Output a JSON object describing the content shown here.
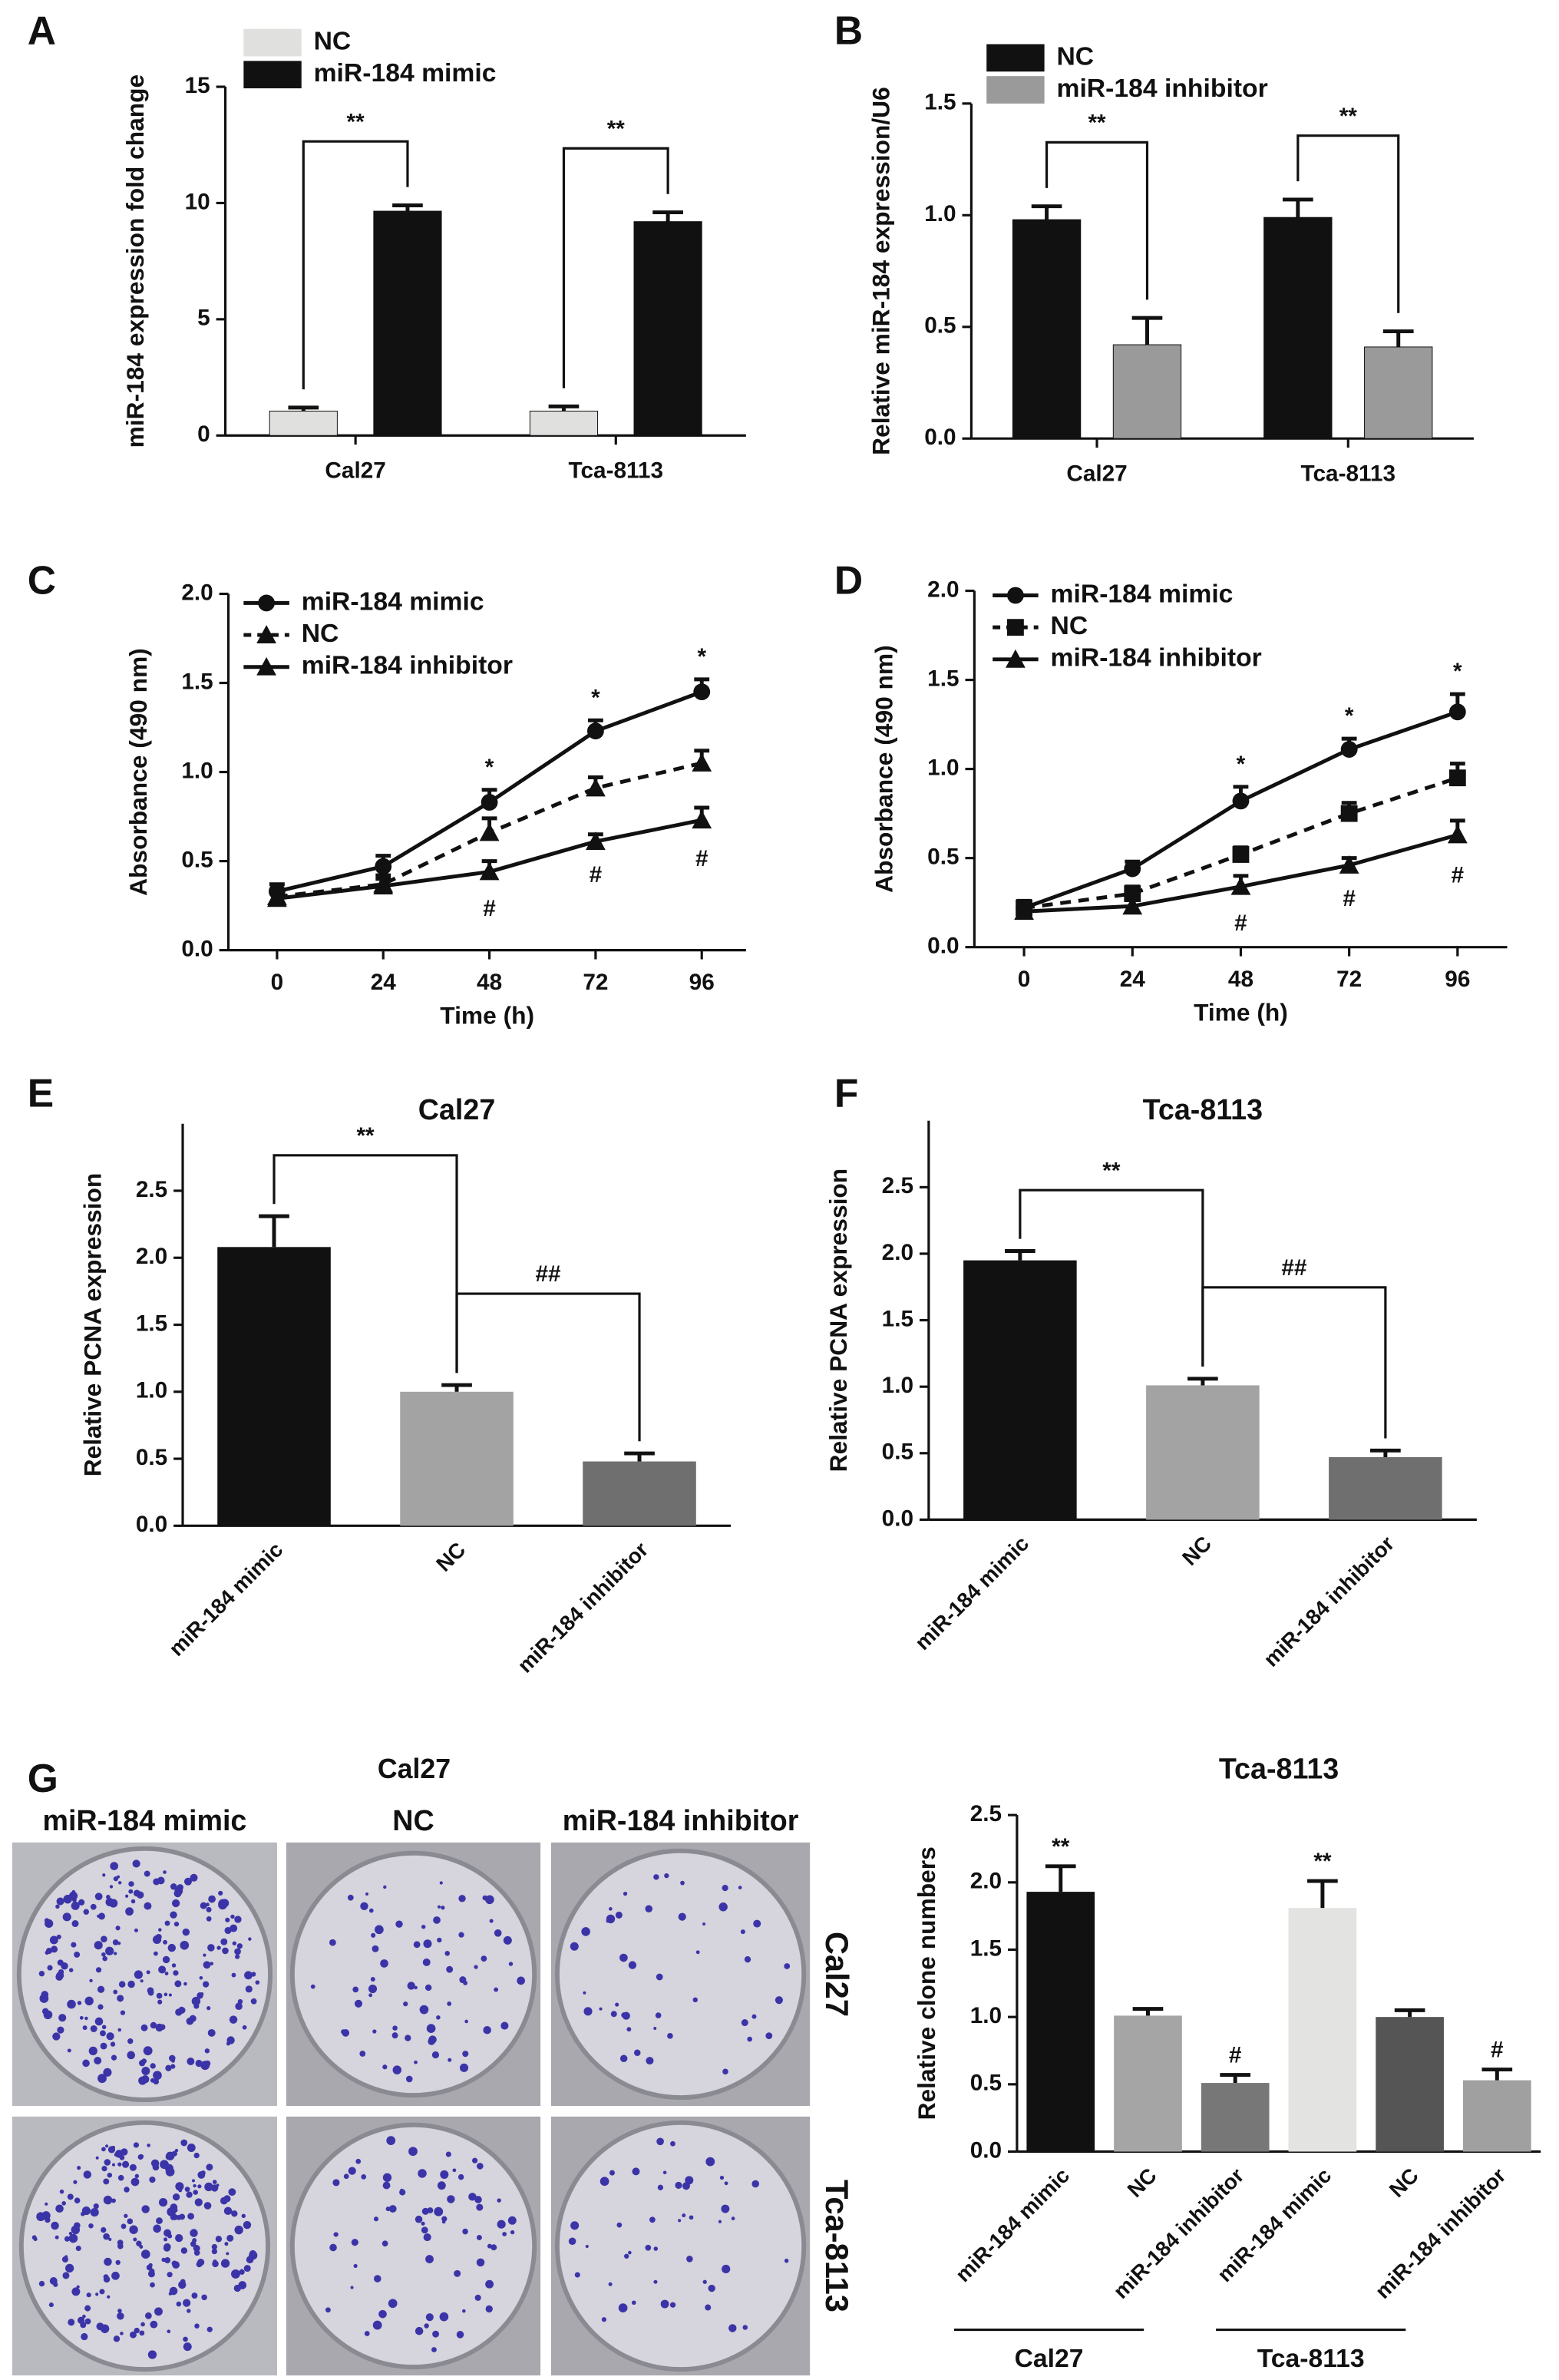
{
  "chart_data": [
    {
      "type": "bar",
      "panel": "A",
      "ylabel": "miR-184 expression fold change",
      "categories": [
        "Cal27",
        "Tca-8113"
      ],
      "series": [
        {
          "name": "NC",
          "color": "#e0e0de",
          "values": [
            1.05,
            1.05
          ],
          "errors": [
            0.15,
            0.2
          ]
        },
        {
          "name": "miR-184 mimic",
          "color": "#111111",
          "values": [
            9.65,
            9.2
          ],
          "errors": [
            0.25,
            0.4
          ]
        }
      ],
      "significance": [
        "**",
        "**"
      ],
      "ylim": [
        0,
        15
      ],
      "yticks": [
        0,
        5,
        10,
        15
      ]
    },
    {
      "type": "bar",
      "panel": "B",
      "ylabel": "Relative miR-184 expression/U6",
      "categories": [
        "Cal27",
        "Tca-8113"
      ],
      "series": [
        {
          "name": "NC",
          "color": "#111111",
          "values": [
            0.98,
            0.99
          ],
          "errors": [
            0.06,
            0.08
          ]
        },
        {
          "name": "miR-184 inhibitor",
          "color": "#9a9a9a",
          "values": [
            0.42,
            0.41
          ],
          "errors": [
            0.12,
            0.07
          ]
        }
      ],
      "significance": [
        "**",
        "**"
      ],
      "ylim": [
        0,
        1.5
      ],
      "yticks": [
        {
          "value": 0,
          "label": "0.0"
        },
        0.5,
        {
          "value": 1,
          "label": "1.0"
        },
        1.5
      ]
    },
    {
      "type": "line",
      "panel": "C",
      "xlabel": "Time (h)",
      "ylabel": "Absorbance (490 nm)",
      "x": [
        0,
        24,
        48,
        72,
        96
      ],
      "series": [
        {
          "name": "miR-184 mimic",
          "color": "#111111",
          "marker": "circle",
          "dash": false,
          "values": [
            0.33,
            0.47,
            0.83,
            1.23,
            1.45
          ],
          "errors": [
            0.04,
            0.06,
            0.07,
            0.06,
            0.07
          ],
          "annotations": [
            null,
            null,
            "*",
            "*",
            "*"
          ]
        },
        {
          "name": "NC",
          "color": "#111111",
          "marker": "triangle",
          "dash": true,
          "values": [
            0.3,
            0.37,
            0.66,
            0.91,
            1.05
          ],
          "errors": [
            0.04,
            0.05,
            0.08,
            0.06,
            0.07
          ]
        },
        {
          "name": "miR-184 inhibitor",
          "color": "#111111",
          "marker": "triangle",
          "dash": false,
          "values": [
            0.29,
            0.36,
            0.44,
            0.61,
            0.73
          ],
          "errors": [
            0.03,
            0.04,
            0.06,
            0.04,
            0.07
          ],
          "annotations": [
            null,
            null,
            "#",
            "#",
            "#"
          ]
        }
      ],
      "xlim": [
        -11,
        106
      ],
      "xticks": [
        0,
        24,
        48,
        72,
        96
      ],
      "ylim": [
        0,
        2
      ],
      "yticks": [
        {
          "value": 0,
          "label": "0.0"
        },
        0.5,
        {
          "value": 1,
          "label": "1.0"
        },
        1.5,
        {
          "value": 2,
          "label": "2.0"
        }
      ]
    },
    {
      "type": "line",
      "panel": "D",
      "xlabel": "Time (h)",
      "ylabel": "Absorbance (490 nm)",
      "x": [
        0,
        24,
        48,
        72,
        96
      ],
      "series": [
        {
          "name": "miR-184 mimic",
          "color": "#111111",
          "marker": "circle",
          "dash": false,
          "values": [
            0.22,
            0.44,
            0.82,
            1.11,
            1.32
          ],
          "errors": [
            0.04,
            0.04,
            0.08,
            0.06,
            0.1
          ],
          "annotations": [
            null,
            null,
            "*",
            "*",
            "*"
          ]
        },
        {
          "name": "NC",
          "color": "#111111",
          "marker": "square",
          "dash": true,
          "values": [
            0.22,
            0.3,
            0.52,
            0.75,
            0.95
          ],
          "errors": [
            0.03,
            0.04,
            0.04,
            0.06,
            0.08
          ]
        },
        {
          "name": "miR-184 inhibitor",
          "color": "#111111",
          "marker": "triangle",
          "dash": false,
          "values": [
            0.2,
            0.23,
            0.34,
            0.46,
            0.63
          ],
          "errors": [
            0.03,
            0.09,
            0.06,
            0.04,
            0.08
          ],
          "annotations": [
            null,
            null,
            "#",
            "#",
            "#"
          ]
        }
      ],
      "xlim": [
        -11,
        107
      ],
      "xticks": [
        0,
        24,
        48,
        72,
        96
      ],
      "ylim": [
        0,
        2
      ],
      "yticks": [
        {
          "value": 0,
          "label": "0.0"
        },
        0.5,
        {
          "value": 1,
          "label": "1.0"
        },
        1.5,
        {
          "value": 2,
          "label": "2.0"
        }
      ]
    },
    {
      "type": "bar",
      "panel": "E",
      "title": "Cal27",
      "ylabel": "Relative PCNA expression",
      "categories": [
        "miR-184 mimic",
        "NC",
        "miR-184 inhibitor"
      ],
      "values": [
        2.08,
        1.0,
        0.48
      ],
      "errors": [
        0.23,
        0.05,
        0.06
      ],
      "colors": [
        "#111111",
        "#a3a3a3",
        "#6f6f6f"
      ],
      "significance": [
        "**",
        "##"
      ],
      "ylim": [
        0,
        3
      ],
      "yticks": [
        {
          "value": 0,
          "label": "0.0"
        },
        0.5,
        {
          "value": 1,
          "label": "1.0"
        },
        1.5,
        {
          "value": 2,
          "label": "2.0"
        },
        2.5
      ]
    },
    {
      "type": "bar",
      "panel": "F",
      "title": "Tca-8113",
      "ylabel": "Relative PCNA expression",
      "categories": [
        "miR-184 mimic",
        "NC",
        "miR-184 inhibitor"
      ],
      "values": [
        1.95,
        1.01,
        0.47
      ],
      "errors": [
        0.07,
        0.05,
        0.05
      ],
      "colors": [
        "#111111",
        "#a3a3a3",
        "#6f6f6f"
      ],
      "significance": [
        "**",
        "##"
      ],
      "ylim": [
        0,
        3
      ],
      "yticks": [
        {
          "value": 0,
          "label": "0.0"
        },
        0.5,
        {
          "value": 1,
          "label": "1.0"
        },
        1.5,
        {
          "value": 2,
          "label": "2.0"
        },
        2.5
      ]
    },
    {
      "type": "bar",
      "title": "Tca-8113",
      "ylabel": "Relative clone numbers",
      "categories": [
        "miR-184 mimic",
        "NC",
        "miR-184 inhibitor",
        "miR-184 mimic",
        "NC",
        "miR-184 inhibitor"
      ],
      "values": [
        1.93,
        1.01,
        0.51,
        1.81,
        1.0,
        0.53
      ],
      "errors": [
        0.19,
        0.05,
        0.06,
        0.2,
        0.05,
        0.08
      ],
      "colors": [
        "#111111",
        "#a5a5a5",
        "#777777",
        "#e3e3e1",
        "#555555",
        "#a0a0a0"
      ],
      "annotations": [
        "**",
        null,
        "#",
        "**",
        null,
        "#"
      ],
      "groups": [
        "Cal27",
        "Tca-8113"
      ],
      "ylim": [
        0,
        2.5
      ],
      "yticks": [
        {
          "value": 0,
          "label": "0.0"
        },
        0.5,
        {
          "value": 1,
          "label": "1.0"
        },
        1.5,
        {
          "value": 2,
          "label": "2.0"
        },
        2.5
      ]
    }
  ],
  "photo_panel": {
    "panel": "G",
    "title": "Cal27",
    "columns": [
      "miR-184 mimic",
      "NC",
      "miR-184 inhibitor"
    ],
    "rows": [
      "Cal27",
      "Tca-8113"
    ]
  }
}
